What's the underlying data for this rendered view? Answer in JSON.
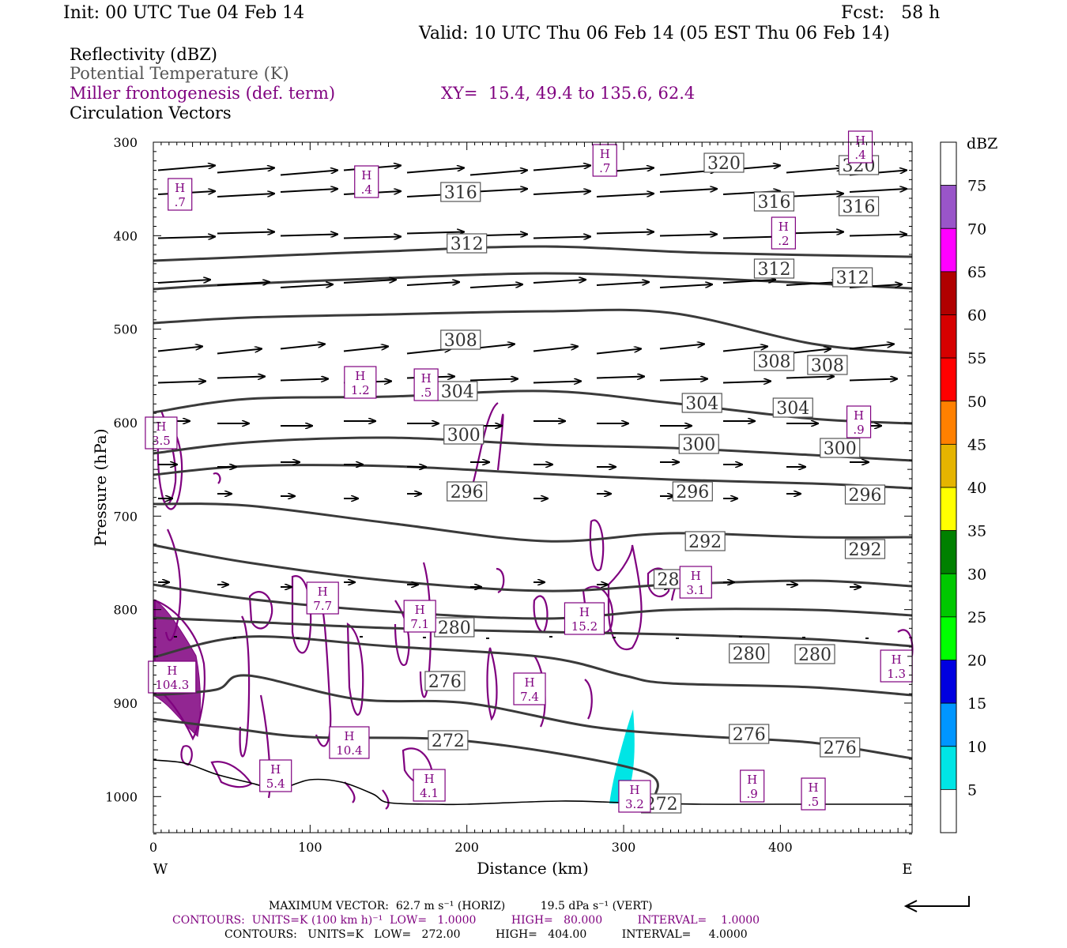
{
  "header": {
    "init": "Init: 00 UTC Tue 04 Feb 14",
    "fcst": "Fcst:   58 h",
    "valid": "Valid: 10 UTC Thu 06 Feb 14 (05 EST Thu 06 Feb 14)"
  },
  "legend": {
    "reflectivity": "Reflectivity (dBZ)",
    "theta": "Potential Temperature (K)",
    "miller": "Miller frontogenesis (def. term)",
    "xy": "XY=  15.4, 49.4 to 135.6, 62.4",
    "vectors": "Circulation Vectors"
  },
  "colors": {
    "theta": "#3a3a3a",
    "frontogenesis": "#7f007f",
    "reflectivity_5_10": "#00e5e5",
    "text_gray": "#555555"
  },
  "chart_data": {
    "type": "cross-section",
    "xlabel": "Distance (km)",
    "ylabel": "Pressure (hPa)",
    "xlim": [
      0,
      484
    ],
    "ylim": [
      1040,
      300
    ],
    "x_ticks": [
      "0",
      "100",
      "200",
      "300",
      "400"
    ],
    "y_ticks": [
      "300",
      "400",
      "500",
      "600",
      "700",
      "800",
      "900",
      "1000"
    ],
    "x_end_labels": {
      "left": "W",
      "right": "E"
    },
    "theta_contours_K": [
      {
        "value": "320",
        "points": [
          [
            0,
            330
          ],
          [
            50,
            326
          ],
          [
            150,
            318
          ],
          [
            250,
            312
          ],
          [
            350,
            320
          ],
          [
            484,
            325
          ]
        ]
      },
      {
        "value": "316",
        "points": [
          [
            0,
            366
          ],
          [
            50,
            360
          ],
          [
            150,
            352
          ],
          [
            250,
            346
          ],
          [
            350,
            352
          ],
          [
            484,
            365
          ]
        ]
      },
      {
        "value": "312",
        "points": [
          [
            0,
            409
          ],
          [
            60,
            402
          ],
          [
            150,
            398
          ],
          [
            250,
            394
          ],
          [
            330,
            396
          ],
          [
            420,
            435
          ],
          [
            484,
            447
          ]
        ]
      },
      {
        "value": "308",
        "points": [
          [
            0,
            522
          ],
          [
            60,
            505
          ],
          [
            150,
            502
          ],
          [
            250,
            495
          ],
          [
            330,
            510
          ],
          [
            420,
            530
          ],
          [
            484,
            536
          ]
        ]
      },
      {
        "value": "304",
        "points": [
          [
            0,
            574
          ],
          [
            60,
            560
          ],
          [
            150,
            554
          ],
          [
            250,
            563
          ],
          [
            330,
            567
          ],
          [
            420,
            576
          ],
          [
            484,
            583
          ]
        ]
      },
      {
        "value": "300",
        "points": [
          [
            0,
            601
          ],
          [
            60,
            590
          ],
          [
            150,
            590
          ],
          [
            250,
            600
          ],
          [
            330,
            607
          ],
          [
            420,
            612
          ],
          [
            484,
            618
          ]
        ]
      },
      {
        "value": "296",
        "points": [
          [
            0,
            638
          ],
          [
            60,
            640
          ],
          [
            150,
            662
          ],
          [
            250,
            685
          ],
          [
            330,
            675
          ],
          [
            420,
            680
          ],
          [
            484,
            680
          ]
        ]
      },
      {
        "value": "292",
        "points": [
          [
            0,
            690
          ],
          [
            60,
            712
          ],
          [
            150,
            735
          ],
          [
            250,
            748
          ],
          [
            330,
            740
          ],
          [
            420,
            735
          ],
          [
            484,
            742
          ]
        ]
      },
      {
        "value": "288",
        "points": [
          [
            0,
            740
          ],
          [
            60,
            758
          ],
          [
            150,
            774
          ],
          [
            250,
            783
          ],
          [
            330,
            772
          ],
          [
            420,
            772
          ],
          [
            484,
            779
          ]
        ]
      },
      {
        "value": "284",
        "points": [
          [
            0,
            782
          ],
          [
            60,
            787
          ],
          [
            150,
            795
          ],
          [
            250,
            800
          ],
          [
            330,
            803
          ],
          [
            420,
            809
          ],
          [
            484,
            818
          ]
        ]
      },
      {
        "value": "280",
        "points": [
          [
            0,
            832
          ],
          [
            60,
            806
          ],
          [
            150,
            818
          ],
          [
            250,
            832
          ],
          [
            300,
            855
          ],
          [
            330,
            865
          ],
          [
            420,
            870
          ],
          [
            484,
            880
          ]
        ]
      },
      {
        "value": "276",
        "points": [
          [
            0,
            880
          ],
          [
            40,
            873
          ],
          [
            60,
            855
          ],
          [
            130,
            885
          ],
          [
            200,
            890
          ],
          [
            280,
            920
          ],
          [
            350,
            932
          ],
          [
            420,
            940
          ],
          [
            484,
            960
          ]
        ]
      },
      {
        "value": "272",
        "points": [
          [
            0,
            910
          ],
          [
            50,
            922
          ],
          [
            100,
            933
          ],
          [
            200,
            938
          ],
          [
            310,
            975
          ],
          [
            320,
            1010
          ]
        ]
      }
    ],
    "theta_labels": [
      [
        "320",
        364,
        206
      ],
      [
        "320",
        450,
        209
      ],
      [
        "316",
        196,
        243
      ],
      [
        "316",
        396,
        255
      ],
      [
        "316",
        450,
        261
      ],
      [
        "312",
        200,
        308
      ],
      [
        "312",
        396,
        340
      ],
      [
        "312",
        446,
        351
      ],
      [
        "308",
        196,
        430
      ],
      [
        "308",
        396,
        457
      ],
      [
        "308",
        430,
        462
      ],
      [
        "304",
        194,
        495
      ],
      [
        "304",
        350,
        510
      ],
      [
        "304",
        408,
        516
      ],
      [
        "300",
        198,
        550
      ],
      [
        "300",
        348,
        562
      ],
      [
        "300",
        438,
        567
      ],
      [
        "296",
        200,
        622
      ],
      [
        "296",
        344,
        622
      ],
      [
        "296",
        454,
        626
      ],
      [
        "292",
        352,
        685
      ],
      [
        "292",
        454,
        695
      ],
      [
        "288",
        332,
        733
      ],
      [
        "280",
        192,
        794
      ],
      [
        "280",
        380,
        827
      ],
      [
        "280",
        422,
        828
      ],
      [
        "276",
        186,
        862
      ],
      [
        "276",
        380,
        929
      ],
      [
        "276",
        438,
        946
      ],
      [
        "272",
        188,
        937
      ],
      [
        "272",
        324,
        1017
      ]
    ],
    "frontogenesis_maxima": [
      [
        "H",
        ".7",
        17,
        246
      ],
      [
        "H",
        ".4",
        136,
        230
      ],
      [
        "H",
        ".7",
        288,
        203
      ],
      [
        "H",
        ".4",
        451,
        186
      ],
      [
        "H",
        ".2",
        402,
        295
      ],
      [
        "H",
        "1.2",
        132,
        484
      ],
      [
        "H",
        ".5",
        174,
        487
      ],
      [
        "H",
        ".9",
        450,
        534
      ],
      [
        "H",
        "3.5",
        5,
        548
      ],
      [
        "H",
        "7.7",
        108,
        757
      ],
      [
        "H",
        "7.1",
        170,
        780
      ],
      [
        "H",
        "15.2",
        275,
        783
      ],
      [
        "H",
        "3.1",
        346,
        737
      ],
      [
        "H",
        "1.3",
        474,
        843
      ],
      [
        "H",
        "104.3",
        12,
        857
      ],
      [
        "H",
        "7.4",
        240,
        872
      ],
      [
        "H",
        "10.4",
        125,
        940
      ],
      [
        "H",
        "5.4",
        78,
        982
      ],
      [
        "H",
        "4.1",
        176,
        994
      ],
      [
        "H",
        ".9",
        382,
        995
      ],
      [
        "H",
        ".5",
        421,
        1005
      ],
      [
        "H",
        "3.2",
        307,
        1008
      ]
    ],
    "max_vector": "MAXIMUM VECTOR:  62.7 m s⁻¹ (HORIZ)          19.5 dPa s⁻¹ (VERT)",
    "contours_frontogenesis": "CONTOURS:  UNITS=K (100 km h)⁻¹  LOW=   1.0000          HIGH=   80.000          INTERVAL=    1.0000",
    "contours_theta": "CONTOURS:   UNITS=K   LOW=   272.00          HIGH=   404.00          INTERVAL=     4.0000",
    "colorbar": {
      "unit": "dBZ",
      "levels": [
        "5",
        "10",
        "15",
        "20",
        "25",
        "30",
        "35",
        "40",
        "45",
        "50",
        "55",
        "60",
        "65",
        "70",
        "75"
      ],
      "colors": [
        "#ffffff",
        "#00e5e5",
        "#0096ff",
        "#0000e0",
        "#00ff00",
        "#00c800",
        "#008000",
        "#ffff00",
        "#e5b400",
        "#ff8000",
        "#ff0000",
        "#d60000",
        "#b00000",
        "#ff00ff",
        "#9955c9",
        "#ffffff"
      ]
    }
  }
}
